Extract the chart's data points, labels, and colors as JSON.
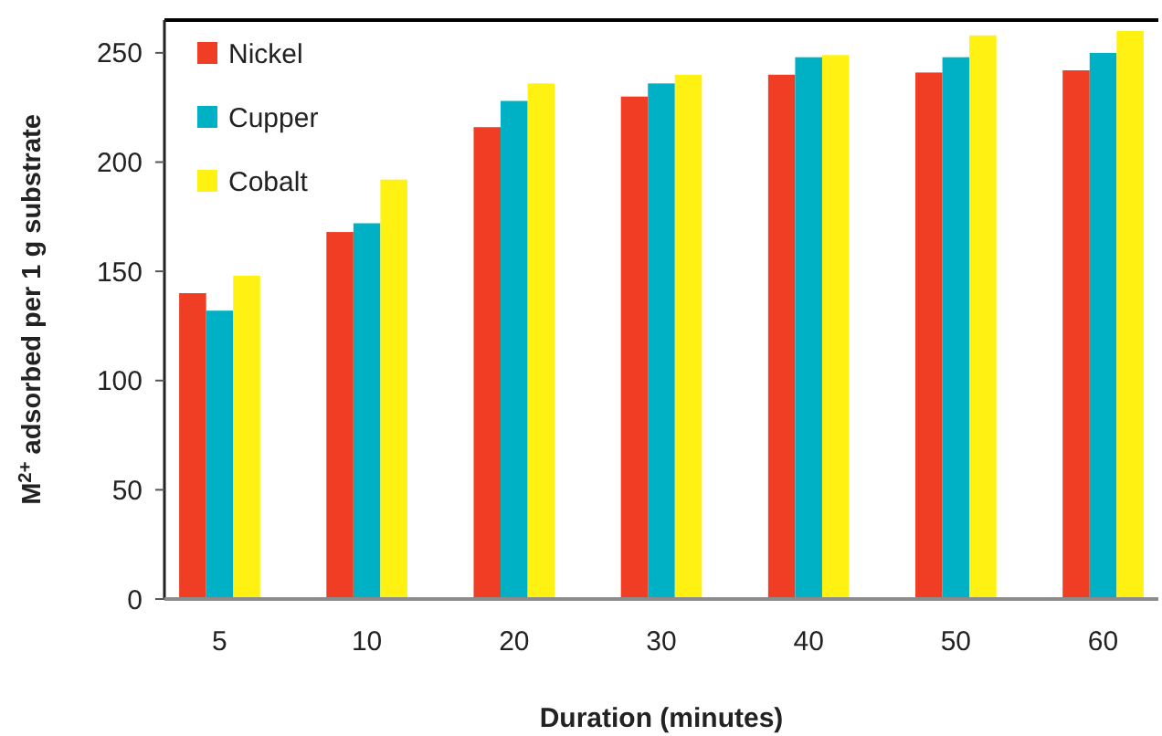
{
  "chart_data": {
    "type": "bar",
    "xlabel": "Duration (minutes)",
    "ylabel": "M$^{2+}$ adsorbed per 1 g substrate",
    "categories": [
      "5",
      "10",
      "20",
      "30",
      "40",
      "50",
      "60"
    ],
    "series": [
      {
        "name": "Nickel",
        "color": "#ef3e23",
        "values": [
          140,
          168,
          216,
          230,
          240,
          241,
          242
        ]
      },
      {
        "name": "Cupper",
        "color": "#00b0c4",
        "values": [
          132,
          172,
          228,
          236,
          248,
          248,
          250
        ]
      },
      {
        "name": "Cobalt",
        "color": "#fff212",
        "values": [
          148,
          192,
          236,
          240,
          249,
          258,
          260
        ]
      }
    ],
    "ylim": [
      0,
      265
    ],
    "yticks": [
      0,
      50,
      100,
      150,
      200,
      250
    ],
    "legend": "top left",
    "grid": false
  }
}
